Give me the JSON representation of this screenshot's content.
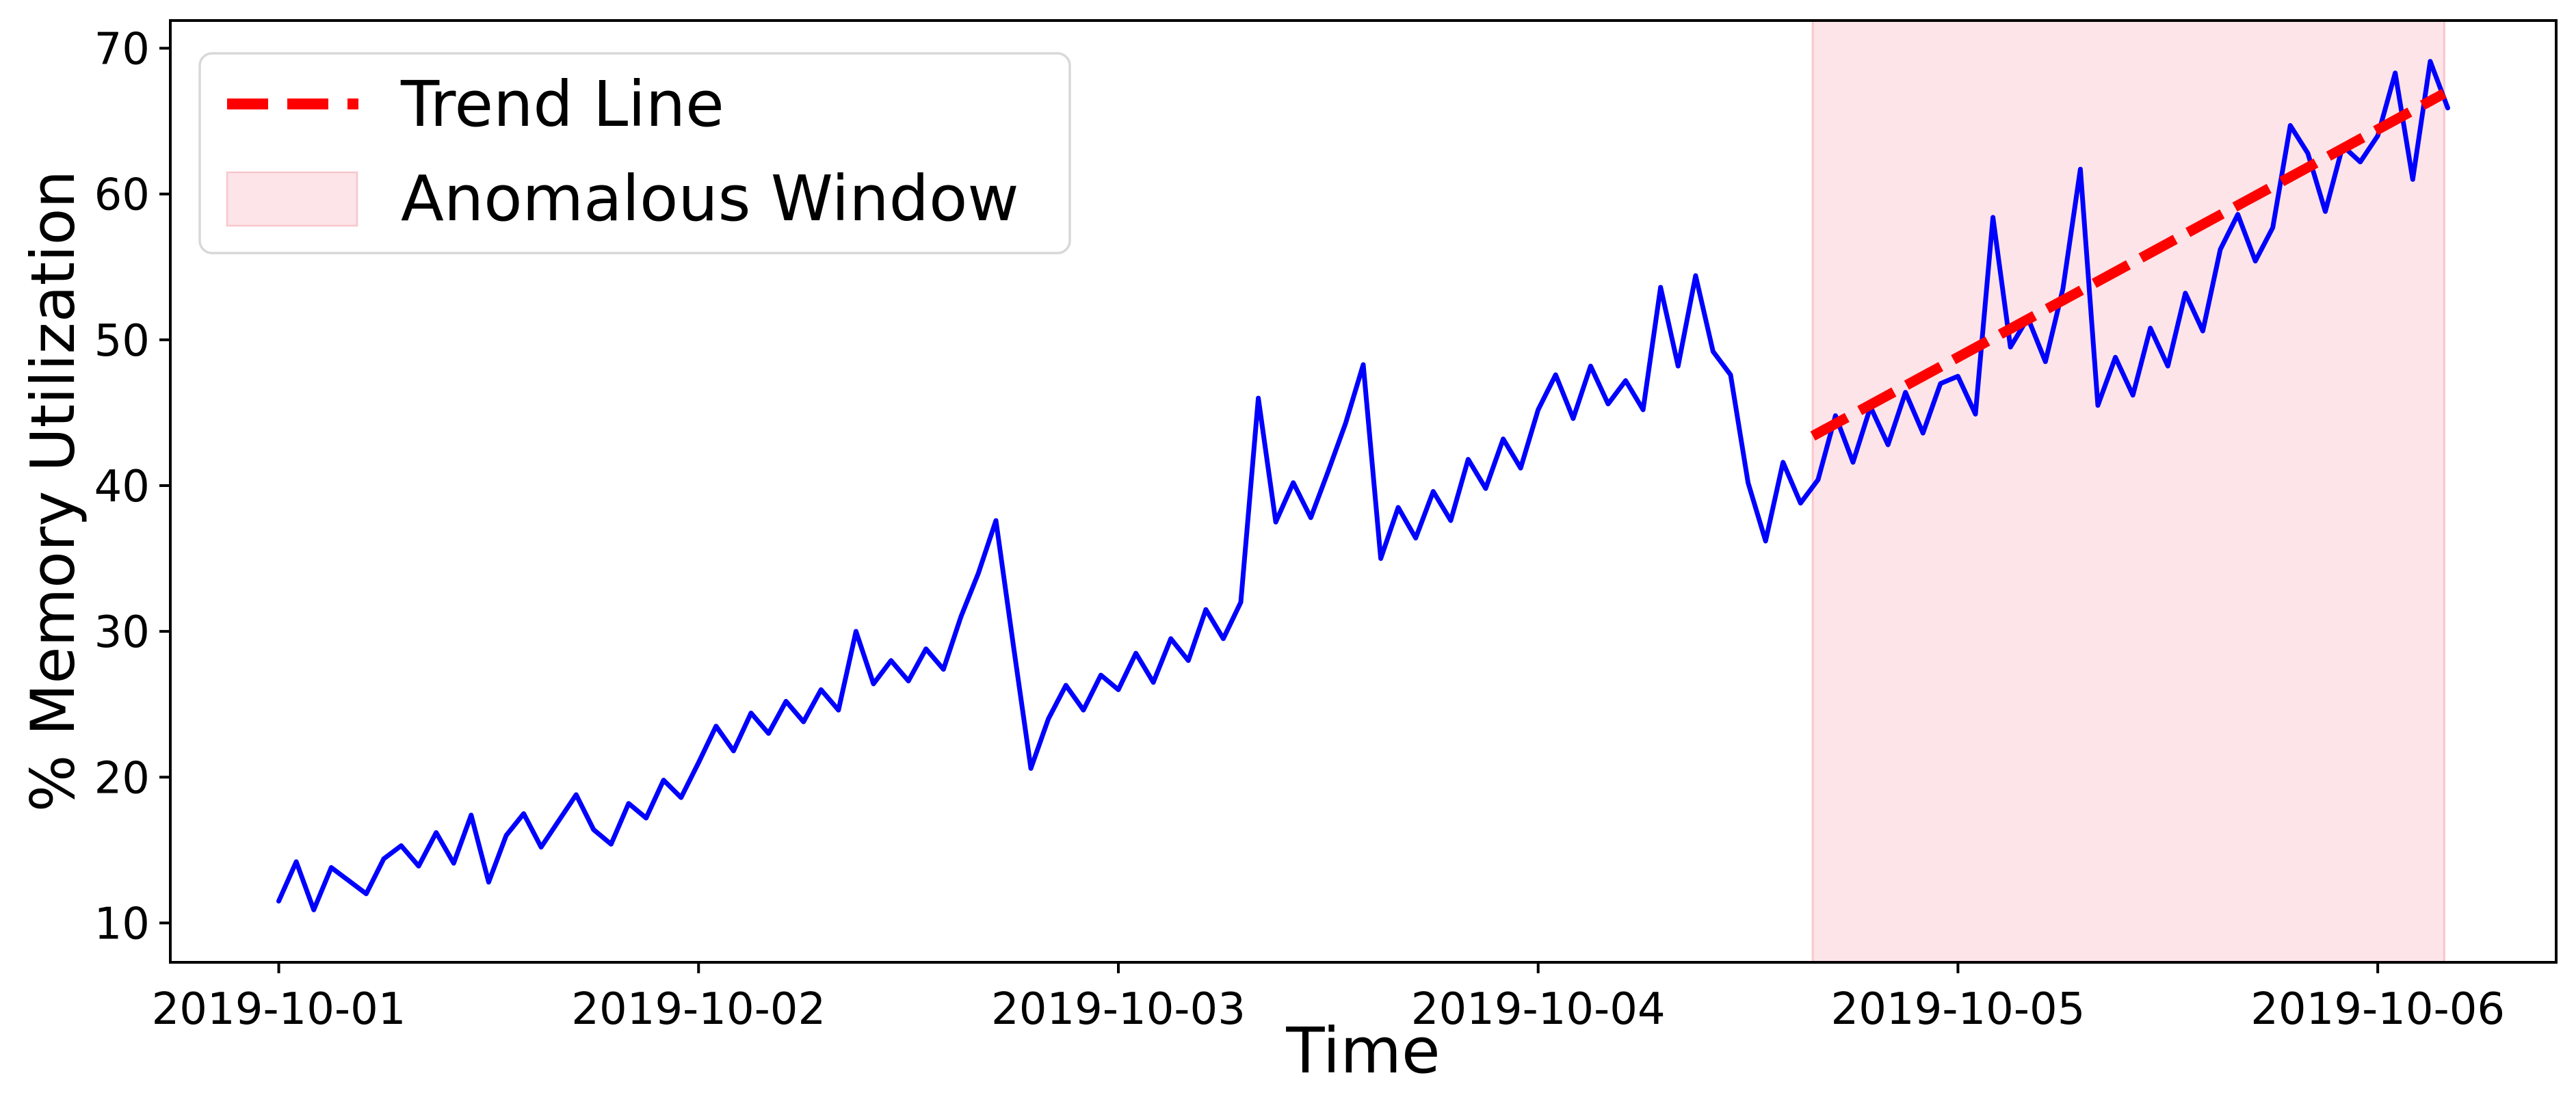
{
  "figure": {
    "kind": "matplotlib-line-figure",
    "background": "#ffffff",
    "text_color": "#000000",
    "spine_color": "#000000"
  },
  "chart_data": {
    "type": "line",
    "title": "",
    "xlabel": "Time",
    "ylabel": "% Memory Utilization",
    "grid": false,
    "legend_position": "upper left",
    "legend": [
      {
        "label": "Trend Line",
        "swatch": "dashed-line",
        "color": "#ff0000"
      },
      {
        "label": "Anomalous Window",
        "swatch": "patch",
        "color": "#fde4e8",
        "edge_color": "#f8c6cd"
      }
    ],
    "x_unit": "hours since 2019-10-01 00:00",
    "xlim_hours": [
      -6.2,
      130.2
    ],
    "ylim": [
      7.3,
      71.9
    ],
    "x_tick_hours": [
      0,
      24,
      48,
      72,
      96,
      120
    ],
    "x_tick_labels": [
      "2019-10-01",
      "2019-10-02",
      "2019-10-03",
      "2019-10-04",
      "2019-10-05",
      "2019-10-06"
    ],
    "y_ticks": [
      10,
      20,
      30,
      40,
      50,
      60,
      70
    ],
    "series": [
      {
        "name": "% Memory Utilization",
        "color": "#0000ff",
        "style": "solid",
        "line_width": 7,
        "x_start_hour": 0,
        "x_step_hours": 1,
        "values": [
          11.5,
          14.2,
          10.9,
          13.8,
          12.9,
          12.0,
          14.4,
          15.3,
          13.9,
          16.2,
          14.1,
          17.4,
          12.8,
          16.0,
          17.5,
          15.2,
          17.0,
          18.8,
          16.4,
          15.4,
          18.2,
          17.2,
          19.8,
          18.6,
          21.0,
          23.5,
          21.8,
          24.4,
          23.0,
          25.2,
          23.8,
          26.0,
          24.6,
          30.0,
          26.4,
          28.0,
          26.6,
          28.8,
          27.4,
          31.0,
          34.0,
          37.6,
          29.0,
          20.6,
          24.0,
          26.3,
          24.6,
          27.0,
          26.0,
          28.5,
          26.5,
          29.5,
          28.0,
          31.5,
          29.5,
          32.0,
          46.0,
          37.5,
          40.2,
          37.8,
          41.0,
          44.3,
          48.3,
          35.0,
          38.5,
          36.4,
          39.6,
          37.6,
          41.8,
          39.8,
          43.2,
          41.2,
          45.2,
          47.6,
          44.6,
          48.2,
          45.6,
          47.2,
          45.2,
          53.6,
          48.2,
          54.4,
          49.2,
          47.6,
          40.2,
          36.2,
          41.6,
          38.8,
          40.4,
          44.8,
          41.6,
          45.4,
          42.8,
          46.4,
          43.6,
          47.0,
          47.5,
          44.9,
          58.4,
          49.5,
          51.5,
          48.5,
          53.5,
          61.7,
          45.5,
          48.8,
          46.2,
          50.8,
          48.2,
          53.2,
          50.6,
          56.2,
          58.6,
          55.4,
          57.7,
          64.7,
          62.8,
          58.8,
          63.3,
          62.2,
          64.0,
          68.3,
          61.0,
          69.1,
          65.9
        ]
      }
    ],
    "trend_line": {
      "name": "Trend Line",
      "color": "#ff0000",
      "style": "dashed",
      "line_width": 15,
      "x_hours": [
        87.7,
        123.8
      ],
      "values": [
        43.4,
        66.9
      ]
    },
    "anomalous_window": {
      "name": "Anomalous Window",
      "x_hours": [
        87.7,
        123.8
      ],
      "fill": "#fde4e8",
      "edge": "#f8c6cd"
    }
  }
}
